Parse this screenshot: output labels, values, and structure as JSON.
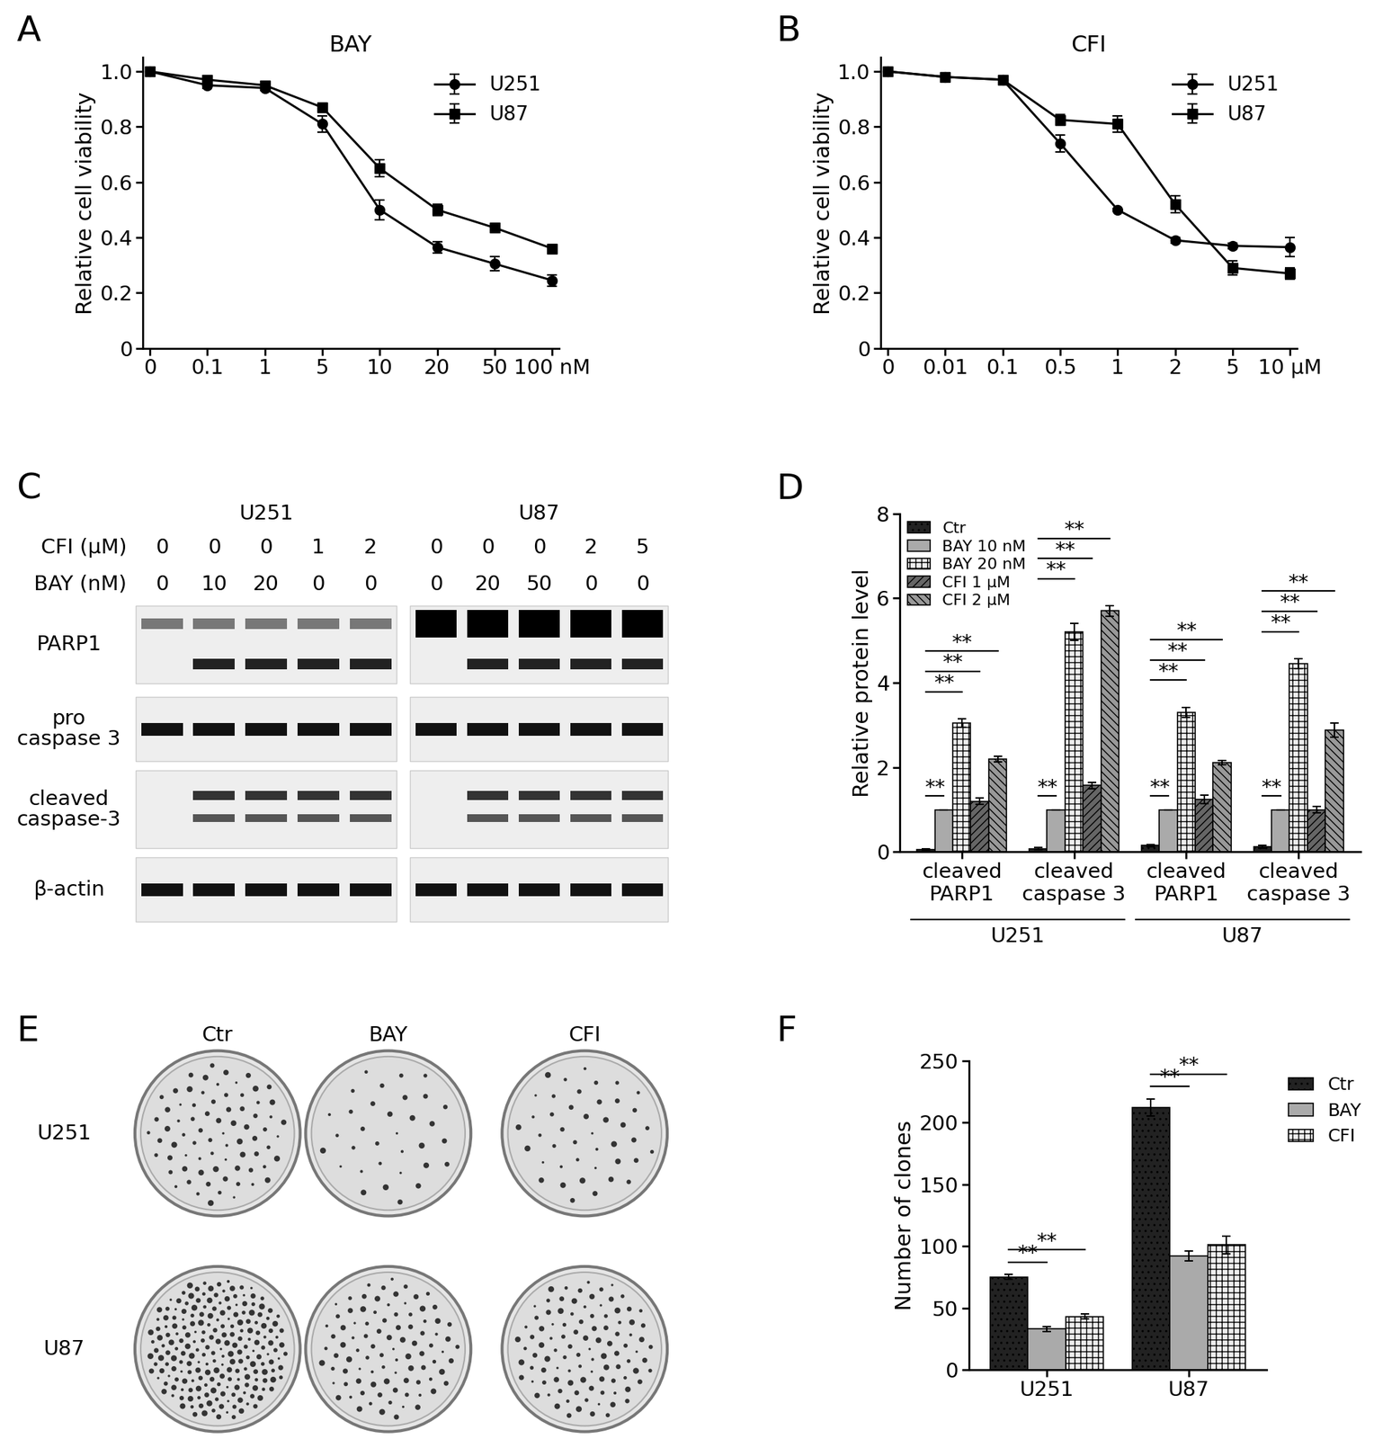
{
  "chart_data": [
    {
      "panel": "A",
      "type": "line",
      "title": "BAY",
      "categories": [
        "0",
        "0.1",
        "1",
        "5",
        "10",
        "20",
        "50",
        "100 nM"
      ],
      "ylabel": "Relative cell viability",
      "ylim": [
        0,
        1.05
      ],
      "yticks": [
        0,
        0.2,
        0.4,
        0.6,
        0.8,
        1.0
      ],
      "legend": "upper right",
      "series": [
        {
          "name": "U251",
          "color": "#000000",
          "marker": "circle",
          "values": [
            1.0,
            0.95,
            0.94,
            0.81,
            0.5,
            0.365,
            0.305,
            0.245
          ],
          "errors": [
            0,
            0.01,
            0.01,
            0.03,
            0.035,
            0.02,
            0.025,
            0.02
          ]
        },
        {
          "name": "U87",
          "color": "#000000",
          "marker": "square",
          "values": [
            1.0,
            0.97,
            0.95,
            0.87,
            0.65,
            0.5,
            0.435,
            0.36
          ],
          "errors": [
            0,
            0.01,
            0.01,
            0.015,
            0.03,
            0.02,
            0.01,
            0.01
          ]
        }
      ]
    },
    {
      "panel": "B",
      "type": "line",
      "title": "CFI",
      "categories": [
        "0",
        "0.01",
        "0.1",
        "0.5",
        "1",
        "2",
        "5",
        "10 µM"
      ],
      "ylabel": "Relative cell viability",
      "ylim": [
        0,
        1.05
      ],
      "yticks": [
        0,
        0.2,
        0.4,
        0.6,
        0.8,
        1.0
      ],
      "legend": "upper right",
      "series": [
        {
          "name": "U251",
          "color": "#000000",
          "marker": "circle",
          "values": [
            1.0,
            0.98,
            0.97,
            0.74,
            0.5,
            0.39,
            0.37,
            0.365
          ],
          "errors": [
            0,
            0.01,
            0.01,
            0.03,
            0.005,
            0.01,
            0.01,
            0.035
          ]
        },
        {
          "name": "U87",
          "color": "#000000",
          "marker": "square",
          "values": [
            1.0,
            0.98,
            0.97,
            0.825,
            0.81,
            0.52,
            0.29,
            0.27
          ],
          "errors": [
            0,
            0.01,
            0.01,
            0.02,
            0.03,
            0.03,
            0.025,
            0.02
          ]
        }
      ]
    },
    {
      "panel": "D",
      "type": "bar",
      "categories": [
        "cleaved\nPARP1",
        "cleaved\ncaspase 3",
        "cleaved\nPARP1",
        "cleaved\ncaspase 3"
      ],
      "cell_lines": [
        "U251",
        "U87"
      ],
      "ylabel": "Relative protein level",
      "ylim": [
        0,
        8
      ],
      "yticks": [
        0,
        2,
        4,
        6,
        8
      ],
      "legend": "upper left",
      "series": [
        {
          "name": "Ctr",
          "color": "#222222",
          "values": [
            0.05,
            0.08,
            0.15,
            0.12
          ],
          "errors": [
            0.02,
            0.02,
            0.03,
            0.03
          ]
        },
        {
          "name": "BAY 10 nM",
          "color": "#aaaaaa",
          "values": [
            1,
            1,
            1,
            1
          ],
          "errors": [
            0,
            0,
            0,
            0
          ]
        },
        {
          "name": "BAY 20 nM",
          "color": "#eeeeee",
          "values": [
            3.05,
            5.2,
            3.3,
            4.45
          ],
          "errors": [
            0.1,
            0.2,
            0.12,
            0.12
          ]
        },
        {
          "name": "CFI 1 µM",
          "color": "#666666",
          "values": [
            1.2,
            1.57,
            1.25,
            1.0
          ],
          "errors": [
            0.08,
            0.07,
            0.1,
            0.07
          ]
        },
        {
          "name": "CFI 2 µM",
          "color": "#999999",
          "values": [
            2.2,
            5.7,
            2.12,
            2.88
          ],
          "errors": [
            0.07,
            0.12,
            0.05,
            0.17
          ]
        }
      ],
      "significance": {
        "label": "**",
        "pairs": [
          [
            "Ctr",
            "BAY 10 nM"
          ],
          [
            "Ctr",
            "BAY 20 nM"
          ],
          [
            "Ctr",
            "CFI 1 µM"
          ],
          [
            "Ctr",
            "CFI 2 µM"
          ]
        ]
      }
    },
    {
      "panel": "F",
      "type": "bar",
      "categories": [
        "U251",
        "U87"
      ],
      "ylabel": "Number of clones",
      "ylim": [
        0,
        250
      ],
      "yticks": [
        0,
        50,
        100,
        150,
        200,
        250
      ],
      "legend": "upper left",
      "series": [
        {
          "name": "Ctr",
          "color": "#222222",
          "values": [
            75,
            212
          ],
          "errors": [
            2,
            7
          ]
        },
        {
          "name": "BAY",
          "color": "#aaaaaa",
          "values": [
            33,
            92
          ],
          "errors": [
            2,
            4
          ]
        },
        {
          "name": "CFI",
          "color": "#eeeeee",
          "values": [
            43,
            101
          ],
          "errors": [
            2,
            7
          ]
        }
      ],
      "significance": {
        "label": "**",
        "pairs": [
          [
            "Ctr",
            "BAY"
          ],
          [
            "Ctr",
            "CFI"
          ]
        ]
      }
    }
  ],
  "blot": {
    "panel": "C",
    "cell_lines": [
      "U251",
      "U87"
    ],
    "lane_rows": [
      {
        "label": "CFI (µM)",
        "values": [
          [
            0,
            0,
            0,
            1,
            2
          ],
          [
            0,
            0,
            0,
            2,
            5
          ]
        ]
      },
      {
        "label": "BAY (nM)",
        "values": [
          [
            0,
            10,
            20,
            0,
            0
          ],
          [
            0,
            20,
            50,
            0,
            0
          ]
        ]
      }
    ],
    "bands": [
      "PARP1",
      "pro\ncaspase 3",
      "cleaved\ncaspase-3",
      "β-actin"
    ]
  },
  "plates": {
    "panel": "E",
    "columns": [
      "Ctr",
      "BAY",
      "CFI"
    ],
    "rows": [
      "U251",
      "U87"
    ]
  }
}
